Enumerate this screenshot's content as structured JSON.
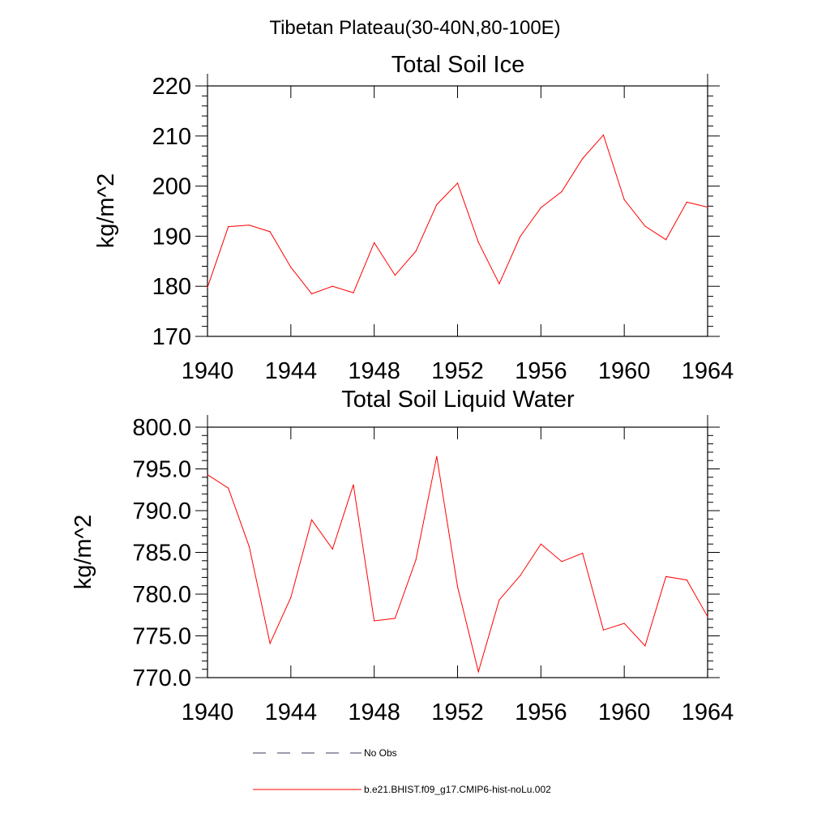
{
  "figure": {
    "suptitle": "Tibetan Plateau(30-40N,80-100E)"
  },
  "chart_data": [
    {
      "type": "line",
      "title": "Total Soil Ice",
      "xlabel": "",
      "ylabel": "kg/m^2",
      "xlim": [
        1940,
        1964
      ],
      "ylim": [
        170,
        220
      ],
      "x_ticks": [
        "1940",
        "1944",
        "1948",
        "1952",
        "1956",
        "1960",
        "1964"
      ],
      "y_ticks": [
        "170",
        "180",
        "190",
        "200",
        "210",
        "220"
      ],
      "x": [
        1940,
        1941,
        1942,
        1943,
        1944,
        1945,
        1946,
        1947,
        1948,
        1949,
        1950,
        1951,
        1952,
        1953,
        1954,
        1955,
        1956,
        1957,
        1958,
        1959,
        1960,
        1961,
        1962,
        1963,
        1964
      ],
      "series": [
        {
          "name": "b.e21.BHIST.f09_g17.CMIP6-hist-noLu.002",
          "color": "#ff0000",
          "values": [
            179.8,
            191.9,
            192.2,
            190.9,
            183.8,
            178.5,
            180.0,
            178.7,
            188.7,
            182.2,
            187.0,
            196.3,
            200.6,
            188.8,
            180.5,
            189.9,
            195.7,
            198.9,
            205.5,
            210.2,
            197.3,
            192.0,
            189.3,
            196.8,
            195.8
          ]
        }
      ]
    },
    {
      "type": "line",
      "title": "Total Soil Liquid Water",
      "xlabel": "",
      "ylabel": "kg/m^2",
      "xlim": [
        1940,
        1964
      ],
      "ylim": [
        770,
        800
      ],
      "x_ticks": [
        "1940",
        "1944",
        "1948",
        "1952",
        "1956",
        "1960",
        "1964"
      ],
      "y_ticks": [
        "770.0",
        "775.0",
        "780.0",
        "785.0",
        "790.0",
        "795.0",
        "800.0"
      ],
      "x": [
        1940,
        1941,
        1942,
        1943,
        1944,
        1945,
        1946,
        1947,
        1948,
        1949,
        1950,
        1951,
        1952,
        1953,
        1954,
        1955,
        1956,
        1957,
        1958,
        1959,
        1960,
        1961,
        1962,
        1963,
        1964
      ],
      "series": [
        {
          "name": "b.e21.BHIST.f09_g17.CMIP6-hist-noLu.002",
          "color": "#ff0000",
          "values": [
            794.3,
            792.7,
            785.7,
            774.1,
            779.6,
            788.9,
            785.4,
            793.1,
            776.8,
            777.1,
            784.1,
            796.5,
            780.9,
            770.7,
            779.3,
            782.2,
            786.0,
            783.9,
            784.9,
            775.7,
            776.5,
            773.8,
            782.1,
            781.7,
            777.3
          ]
        }
      ]
    }
  ],
  "legend": {
    "placement": "bottom",
    "items": [
      {
        "label": "No Obs",
        "style": "dashed",
        "color": "#3a3a5a"
      },
      {
        "label": "b.e21.BHIST.f09_g17.CMIP6-hist-noLu.002",
        "style": "solid",
        "color": "#ff0000"
      }
    ]
  }
}
